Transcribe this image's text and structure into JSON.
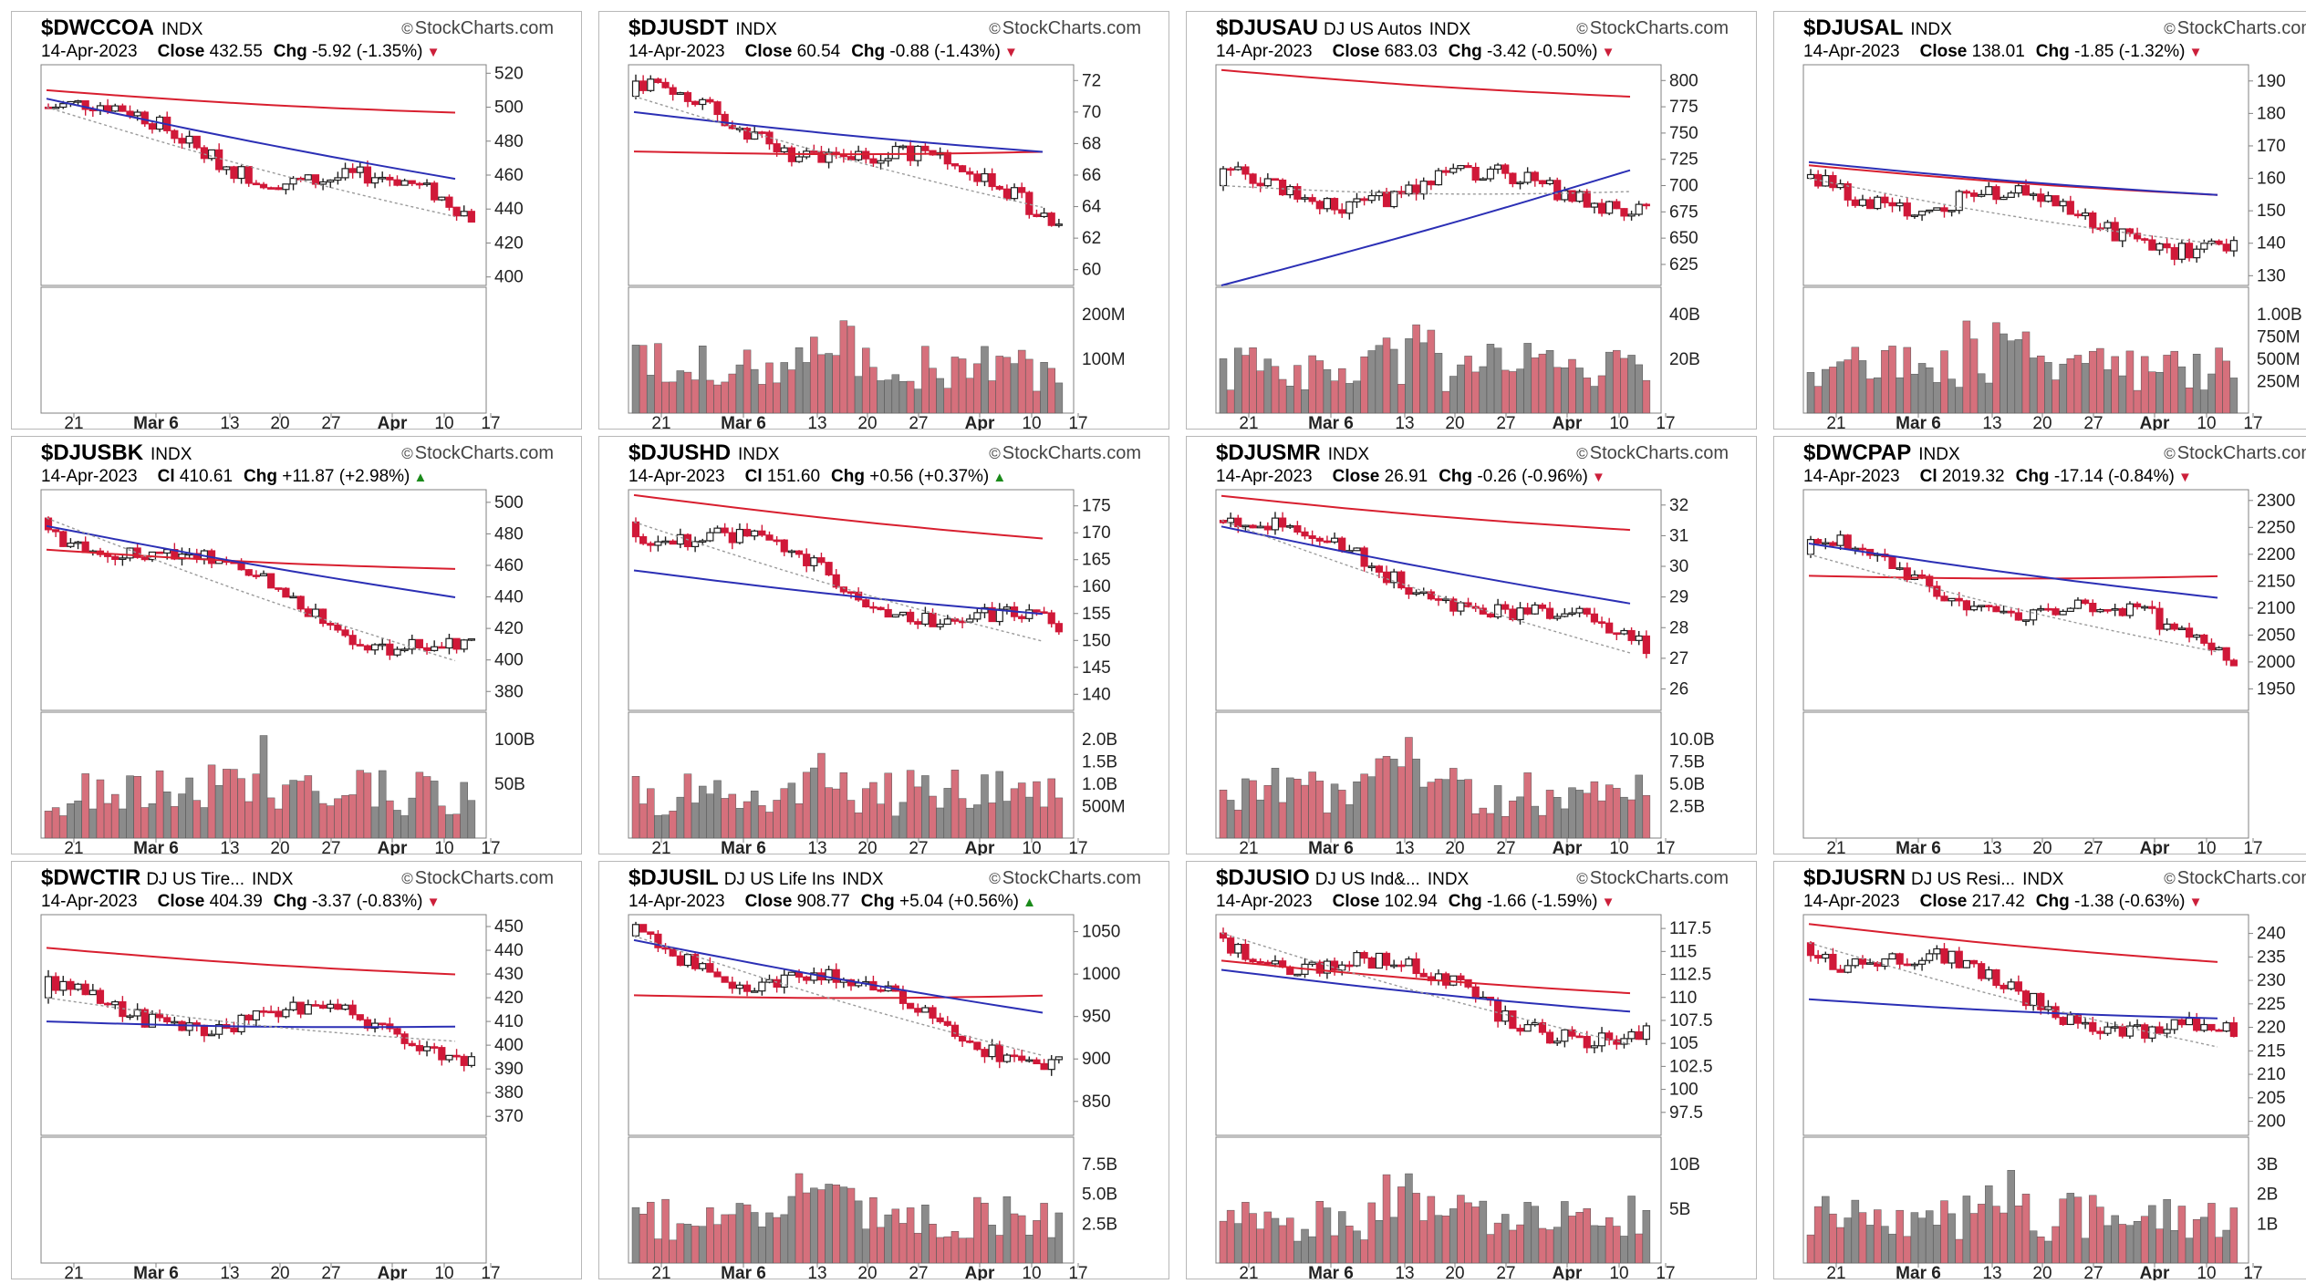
{
  "colors": {
    "up": "#1f1f1f",
    "down": "#d01838",
    "ma_fast": "#9a9a9a",
    "ma_mid": "#2b2fb5",
    "ma_slow": "#d81f2f",
    "vol_up": "#8b8b8b",
    "vol_down": "#d6707c",
    "frame": "#808080",
    "grid": "#dcdcdc"
  },
  "brand": "StockCharts.com",
  "copyright_icon": "copyright-icon",
  "x_ticks": [
    "21",
    "Mar 6",
    "13",
    "20",
    "27",
    "Apr",
    "10",
    "17"
  ],
  "panels": [
    {
      "symbol": "$DWCCOA",
      "desc": "",
      "type": "INDX",
      "date": "14-Apr-2023",
      "close_label": "Close",
      "close": "432.55",
      "chg_label": "Chg",
      "chg": "-5.92 (-1.35%)",
      "dir": "down",
      "chart_data": {
        "type": "line",
        "price_ticks": [
          520,
          500,
          480,
          460,
          440,
          420,
          400
        ],
        "ylim": [
          395,
          525
        ],
        "ma": {
          "slow": [
            510,
            497
          ],
          "mid": [
            505,
            458
          ],
          "fast": [
            500,
            436
          ]
        },
        "vol_ticks": [],
        "vol_max": 100
      }
    },
    {
      "symbol": "$DJUSDT",
      "desc": "",
      "type": "INDX",
      "date": "14-Apr-2023",
      "close_label": "Close",
      "close": "60.54",
      "chg_label": "Chg",
      "chg": "-0.88 (-1.43%)",
      "dir": "down",
      "chart_data": {
        "type": "line",
        "price_ticks": [
          72,
          70,
          68,
          66,
          64,
          62,
          60
        ],
        "ylim": [
          59,
          73
        ],
        "ma": {
          "slow": [
            67.5,
            67.5
          ],
          "mid": [
            70,
            67.5
          ],
          "fast": [
            71,
            64
          ]
        },
        "vol_ticks": [
          "200M",
          "100M"
        ],
        "vol_max": 300
      }
    },
    {
      "symbol": "$DJUSAU",
      "desc": "DJ US Autos",
      "type": "INDX",
      "date": "14-Apr-2023",
      "close_label": "Close",
      "close": "683.03",
      "chg_label": "Chg",
      "chg": "-3.42 (-0.50%)",
      "dir": "down",
      "chart_data": {
        "type": "line",
        "price_ticks": [
          800,
          775,
          750,
          725,
          700,
          675,
          650,
          625
        ],
        "ylim": [
          605,
          815
        ],
        "ma": {
          "slow": [
            810,
            785
          ],
          "mid": [
            605,
            715
          ],
          "fast": [
            700,
            695
          ]
        },
        "vol_ticks": [
          "40B",
          "20B"
        ],
        "vol_max": 55
      }
    },
    {
      "symbol": "$DJUSAL",
      "desc": "",
      "type": "INDX",
      "date": "14-Apr-2023",
      "close_label": "Close",
      "close": "138.01",
      "chg_label": "Chg",
      "chg": "-1.85 (-1.32%)",
      "dir": "down",
      "chart_data": {
        "type": "line",
        "price_ticks": [
          190,
          180,
          170,
          160,
          150,
          140,
          130
        ],
        "ylim": [
          127,
          195
        ],
        "ma": {
          "slow": [
            164,
            155
          ],
          "mid": [
            165,
            155
          ],
          "fast": [
            160,
            140
          ]
        },
        "vol_ticks": [
          "1.00B",
          "750M",
          "500M",
          "250M"
        ],
        "vol_max": 1.2
      }
    },
    {
      "symbol": "$DJUSBK",
      "desc": "",
      "type": "INDX",
      "date": "14-Apr-2023",
      "close_label": "Cl",
      "close": "410.61",
      "chg_label": "Chg",
      "chg": "+11.87 (+2.98%)",
      "dir": "up",
      "chart_data": {
        "type": "line",
        "price_ticks": [
          500,
          480,
          460,
          440,
          420,
          400,
          380
        ],
        "ylim": [
          368,
          508
        ],
        "ma": {
          "slow": [
            470,
            458
          ],
          "mid": [
            485,
            440
          ],
          "fast": [
            490,
            400
          ]
        },
        "vol_ticks": [
          "100B",
          "50B"
        ],
        "vol_max": 130
      }
    },
    {
      "symbol": "$DJUSHD",
      "desc": "",
      "type": "INDX",
      "date": "14-Apr-2023",
      "close_label": "Cl",
      "close": "151.60",
      "chg_label": "Chg",
      "chg": "+0.56 (+0.37%)",
      "dir": "up",
      "chart_data": {
        "type": "line",
        "price_ticks": [
          175,
          170,
          165,
          160,
          155,
          150,
          145,
          140
        ],
        "ylim": [
          137,
          178
        ],
        "ma": {
          "slow": [
            177,
            169
          ],
          "mid": [
            163,
            155
          ],
          "fast": [
            172,
            150
          ]
        },
        "vol_ticks": [
          "2.0B",
          "1.5B",
          "1.0B",
          "500M"
        ],
        "vol_max": 2.3
      }
    },
    {
      "symbol": "$DJUSMR",
      "desc": "",
      "type": "INDX",
      "date": "14-Apr-2023",
      "close_label": "Close",
      "close": "26.91",
      "chg_label": "Chg",
      "chg": "-0.26 (-0.96%)",
      "dir": "down",
      "chart_data": {
        "type": "line",
        "price_ticks": [
          32,
          31,
          30,
          29,
          28,
          27,
          26
        ],
        "ylim": [
          25.3,
          32.5
        ],
        "ma": {
          "slow": [
            32.3,
            31.2
          ],
          "mid": [
            31.3,
            28.8
          ],
          "fast": [
            31.5,
            27.2
          ]
        },
        "vol_ticks": [
          "10.0B",
          "7.5B",
          "5.0B",
          "2.5B"
        ],
        "vol_max": 11.5
      }
    },
    {
      "symbol": "$DWCPAP",
      "desc": "",
      "type": "INDX",
      "date": "14-Apr-2023",
      "close_label": "Cl",
      "close": "2019.32",
      "chg_label": "Chg",
      "chg": "-17.14 (-0.84%)",
      "dir": "down",
      "chart_data": {
        "type": "line",
        "price_ticks": [
          2300,
          2250,
          2200,
          2150,
          2100,
          2050,
          2000,
          1950
        ],
        "ylim": [
          1910,
          2320
        ],
        "ma": {
          "slow": [
            2160,
            2160
          ],
          "mid": [
            2220,
            2120
          ],
          "fast": [
            2200,
            2020
          ]
        },
        "vol_ticks": [],
        "vol_max": 100
      }
    },
    {
      "symbol": "$DWCTIR",
      "desc": "DJ US Tire...",
      "type": "INDX",
      "date": "14-Apr-2023",
      "close_label": "Close",
      "close": "404.39",
      "chg_label": "Chg",
      "chg": "-3.37 (-0.83%)",
      "dir": "down",
      "chart_data": {
        "type": "line",
        "price_ticks": [
          450,
          440,
          430,
          420,
          410,
          400,
          390,
          380,
          370
        ],
        "ylim": [
          362,
          455
        ],
        "ma": {
          "slow": [
            441,
            430
          ],
          "mid": [
            410,
            408
          ],
          "fast": [
            420,
            402
          ]
        },
        "vol_ticks": [],
        "vol_max": 100
      }
    },
    {
      "symbol": "$DJUSIL",
      "desc": "DJ US Life Ins",
      "type": "INDX",
      "date": "14-Apr-2023",
      "close_label": "Close",
      "close": "908.77",
      "chg_label": "Chg",
      "chg": "+5.04 (+0.56%)",
      "dir": "up",
      "chart_data": {
        "type": "line",
        "price_ticks": [
          1050,
          1000,
          950,
          900,
          850
        ],
        "ylim": [
          810,
          1070
        ],
        "ma": {
          "slow": [
            975,
            975
          ],
          "mid": [
            1040,
            955
          ],
          "fast": [
            1045,
            905
          ]
        },
        "vol_ticks": [
          "7.5B",
          "5.0B",
          "2.5B"
        ],
        "vol_max": 8.2
      }
    },
    {
      "symbol": "$DJUSIO",
      "desc": "DJ US Ind&...",
      "type": "INDX",
      "date": "14-Apr-2023",
      "close_label": "Close",
      "close": "102.94",
      "chg_label": "Chg",
      "chg": "-1.66 (-1.59%)",
      "dir": "down",
      "chart_data": {
        "type": "line",
        "price_ticks": [
          117.5,
          115.0,
          112.5,
          110.0,
          107.5,
          105.0,
          102.5,
          100.0,
          97.5
        ],
        "ylim": [
          95,
          119
        ],
        "ma": {
          "slow": [
            114,
            110.5
          ],
          "mid": [
            113,
            108.5
          ],
          "fast": [
            117,
            105
          ]
        },
        "vol_ticks": [
          "10B",
          "5B"
        ],
        "vol_max": 13
      }
    },
    {
      "symbol": "$DJUSRN",
      "desc": "DJ US Resi...",
      "type": "INDX",
      "date": "14-Apr-2023",
      "close_label": "Close",
      "close": "217.42",
      "chg_label": "Chg",
      "chg": "-1.38 (-0.63%)",
      "dir": "down",
      "chart_data": {
        "type": "line",
        "price_ticks": [
          240,
          235,
          230,
          225,
          220,
          215,
          210,
          205,
          200
        ],
        "ylim": [
          197,
          244
        ],
        "ma": {
          "slow": [
            242,
            234
          ],
          "mid": [
            226,
            222
          ],
          "fast": [
            238,
            216
          ]
        },
        "vol_ticks": [
          "3B",
          "2B",
          "1B"
        ],
        "vol_max": 3.2
      }
    }
  ]
}
